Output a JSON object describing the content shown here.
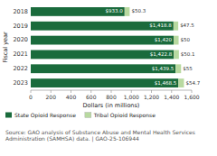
{
  "chart_data": {
    "type": "bar",
    "orientation": "horizontal",
    "stacked": true,
    "data_labels": true,
    "grid": false,
    "legend": "bottom",
    "xlabel": "Dollars (in millions)",
    "ylabel": "Fiscal year",
    "source": "Source: GAO analysis of Substance Abuse and Mental Health Services Administration (SAMHSA) data.  |  GAO-25-106944",
    "categories": [
      "2018",
      "2019",
      "2020",
      "2021",
      "2022",
      "2023"
    ],
    "series": [
      {
        "name": "State Opioid Response",
        "color": "#1a6b3c",
        "values": [
          933.0,
          1418.8,
          1420.0,
          1422.8,
          1439.5,
          1468.5
        ],
        "value_labels": [
          "$933.0",
          "$1,418.8",
          "$1,420",
          "$1,422.8",
          "$1,439.5",
          "$1,468.5"
        ]
      },
      {
        "name": "Tribal Opioid Response",
        "color": "#b8d9a0",
        "values": [
          50.3,
          47.5,
          50.0,
          50.1,
          55.0,
          54.7
        ],
        "value_labels": [
          "$50.3",
          "$47.5",
          "$50",
          "$50.1",
          "$55",
          "$54.7"
        ]
      }
    ],
    "xlim": [
      0,
      1600
    ],
    "xticks": [
      0,
      200,
      400,
      600,
      800,
      {
        "value": 1000,
        "label": "1,000"
      },
      {
        "value": 1200,
        "label": "1,200"
      },
      {
        "value": 1400,
        "label": "1,400"
      },
      {
        "value": 1600,
        "label": "1,600"
      }
    ]
  }
}
